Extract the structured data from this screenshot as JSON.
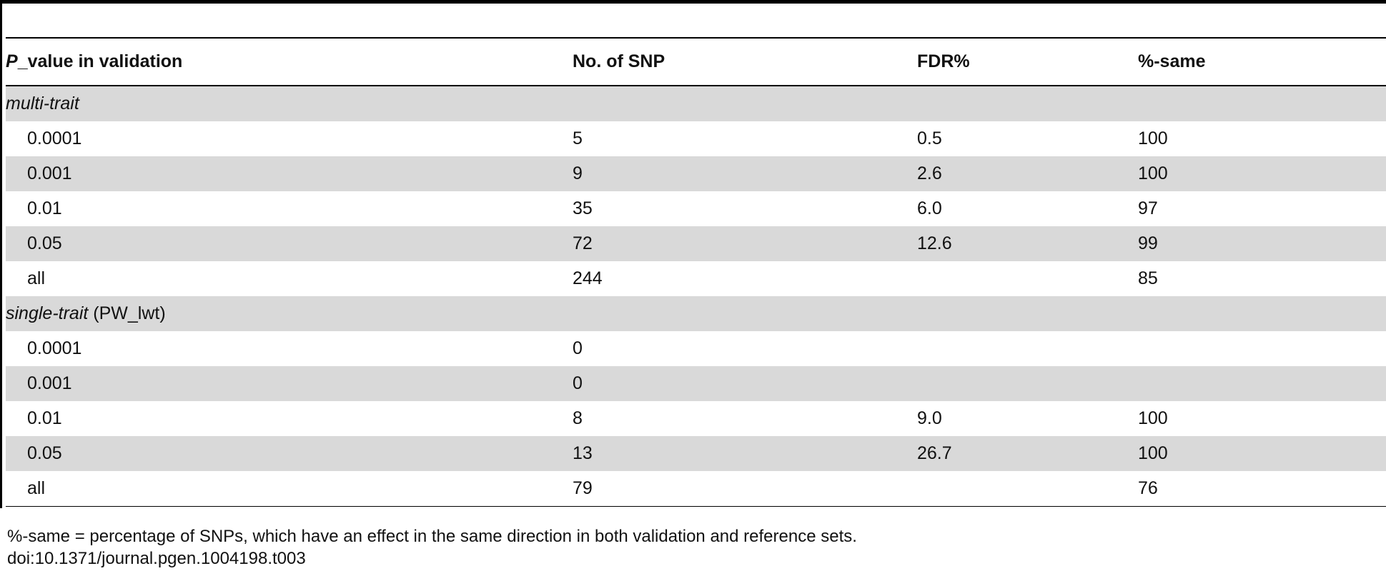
{
  "table": {
    "headers": {
      "col1_italic": "P",
      "col1_rest": "_value in validation",
      "col2": "No. of SNP",
      "col3": "FDR%",
      "col4": "%-same"
    },
    "groups": [
      {
        "label_italic": "multi-trait",
        "label_rest": "",
        "rows": [
          {
            "p": "0.0001",
            "snp": "5",
            "fdr": "0.5",
            "same": "100"
          },
          {
            "p": "0.001",
            "snp": "9",
            "fdr": "2.6",
            "same": "100"
          },
          {
            "p": "0.01",
            "snp": "35",
            "fdr": "6.0",
            "same": "97"
          },
          {
            "p": "0.05",
            "snp": "72",
            "fdr": "12.6",
            "same": "99"
          },
          {
            "p": "all",
            "snp": "244",
            "fdr": "",
            "same": "85"
          }
        ]
      },
      {
        "label_italic": "single-trait",
        "label_rest": " (PW_lwt)",
        "rows": [
          {
            "p": "0.0001",
            "snp": "0",
            "fdr": "",
            "same": ""
          },
          {
            "p": "0.001",
            "snp": "0",
            "fdr": "",
            "same": ""
          },
          {
            "p": "0.01",
            "snp": "8",
            "fdr": "9.0",
            "same": "100"
          },
          {
            "p": "0.05",
            "snp": "13",
            "fdr": "26.7",
            "same": "100"
          },
          {
            "p": "all",
            "snp": "79",
            "fdr": "",
            "same": "76"
          }
        ]
      }
    ]
  },
  "footnote": "%-same = percentage of SNPs, which have an effect in the same direction in both validation and reference sets.",
  "doi": "doi:10.1371/journal.pgen.1004198.t003"
}
